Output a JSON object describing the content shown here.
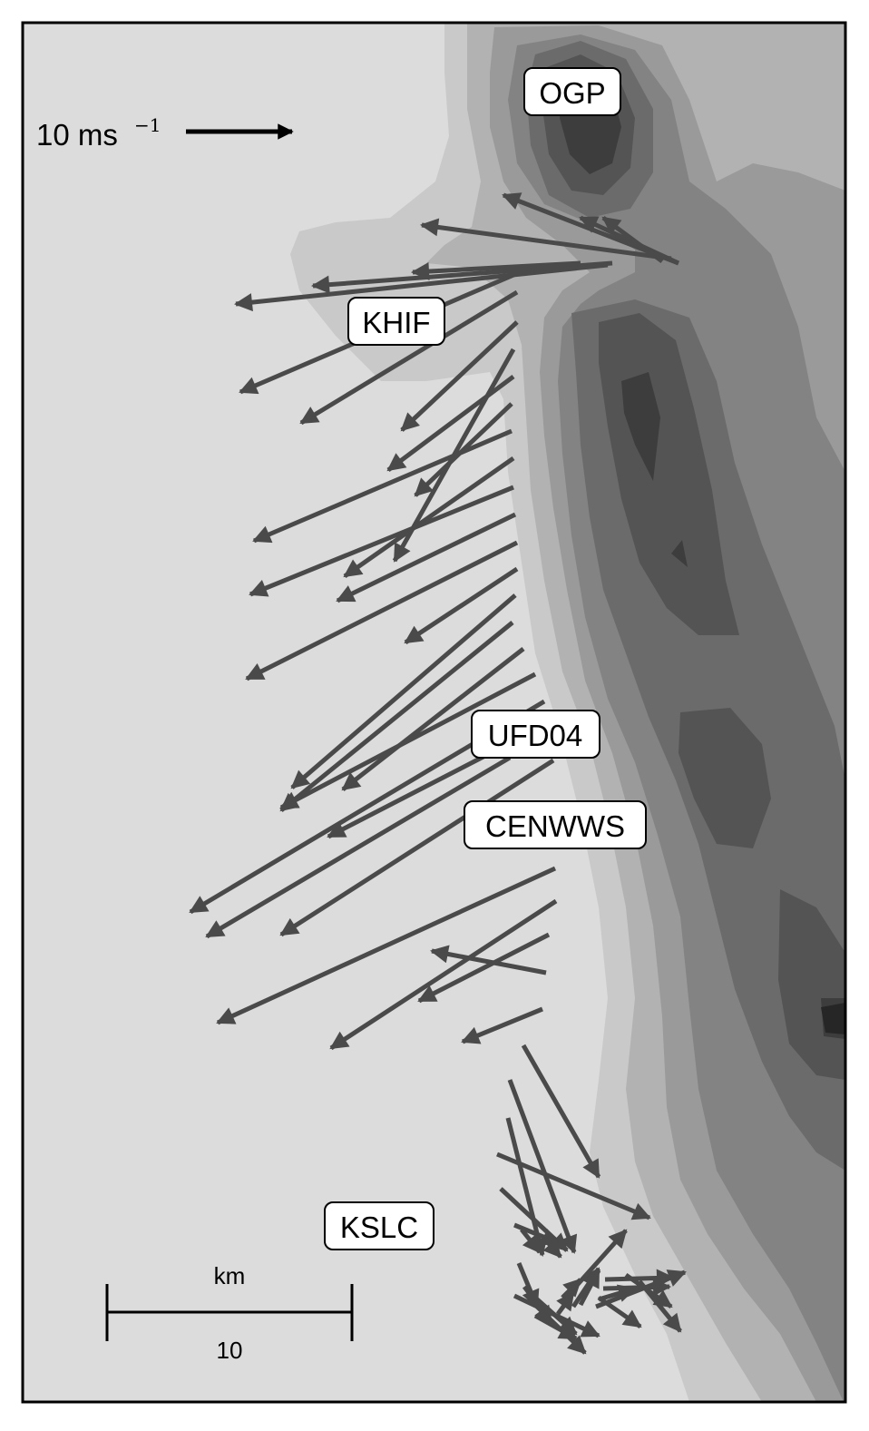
{
  "map": {
    "colors": {
      "background": "#dcdcdc",
      "terrain_levels": [
        "#c9c9c9",
        "#b2b2b2",
        "#9a9a9a",
        "#838383",
        "#6b6b6b",
        "#545454",
        "#3d3d3d",
        "#262626"
      ],
      "wind_vector": "#4a4a4a",
      "reference_vector": "#000000",
      "label_box": "#ffffff"
    },
    "stations": [
      {
        "name": "OGP"
      },
      {
        "name": "KHIF"
      },
      {
        "name": "UFD04"
      },
      {
        "name": "CENWWS"
      },
      {
        "name": "KSLC"
      }
    ],
    "reference_vector": {
      "value_text": "10 ms",
      "exponent": "−1",
      "speed_ms": 10
    },
    "scale_bar": {
      "unit": "km",
      "value": "10"
    },
    "wind_vector_count": 58
  }
}
